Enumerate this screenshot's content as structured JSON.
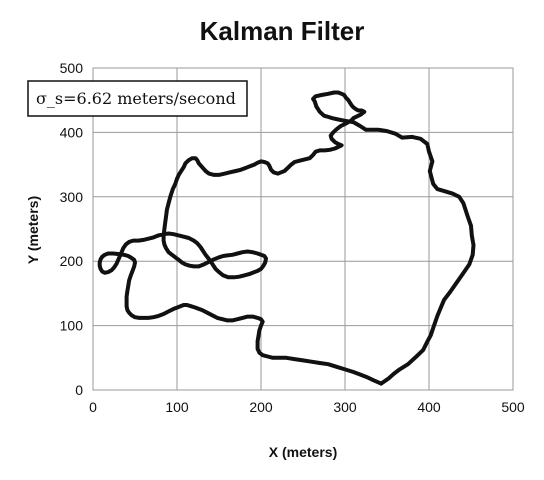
{
  "chart_data": {
    "type": "line",
    "title": "Kalman Filter",
    "xlabel": "X (meters)",
    "ylabel": "Y (meters)",
    "xlim": [
      0,
      500
    ],
    "ylim": [
      0,
      500
    ],
    "x_ticks": [
      "0",
      "100",
      "200",
      "300",
      "400",
      "500"
    ],
    "y_ticks": [
      "0",
      "100",
      "200",
      "300",
      "400",
      "500"
    ],
    "grid": true,
    "annotation": "σ_s=6.62 meters/second",
    "series": [
      {
        "color": "#111111",
        "points": [
          [
            343,
            10
          ],
          [
            352,
            18
          ],
          [
            358,
            25
          ],
          [
            365,
            32
          ],
          [
            375,
            40
          ],
          [
            385,
            52
          ],
          [
            393,
            62
          ],
          [
            398,
            75
          ],
          [
            402,
            85
          ],
          [
            406,
            100
          ],
          [
            410,
            115
          ],
          [
            414,
            128
          ],
          [
            418,
            140
          ],
          [
            425,
            152
          ],
          [
            432,
            165
          ],
          [
            440,
            180
          ],
          [
            448,
            195
          ],
          [
            452,
            210
          ],
          [
            453,
            225
          ],
          [
            451,
            240
          ],
          [
            450,
            255
          ],
          [
            446,
            270
          ],
          [
            441,
            290
          ],
          [
            436,
            300
          ],
          [
            428,
            305
          ],
          [
            420,
            308
          ],
          [
            410,
            312
          ],
          [
            405,
            320
          ],
          [
            403,
            330
          ],
          [
            401,
            340
          ],
          [
            404,
            355
          ],
          [
            400,
            370
          ],
          [
            398,
            382
          ],
          [
            390,
            390
          ],
          [
            380,
            393
          ],
          [
            368,
            392
          ],
          [
            360,
            398
          ],
          [
            350,
            402
          ],
          [
            340,
            404
          ],
          [
            330,
            404
          ],
          [
            325,
            404
          ],
          [
            318,
            410
          ],
          [
            310,
            416
          ],
          [
            300,
            418
          ],
          [
            292,
            420
          ],
          [
            285,
            422
          ],
          [
            280,
            424
          ],
          [
            275,
            426
          ],
          [
            270,
            432
          ],
          [
            266,
            440
          ],
          [
            264,
            448
          ],
          [
            262,
            452
          ],
          [
            265,
            456
          ],
          [
            272,
            458
          ],
          [
            280,
            460
          ],
          [
            287,
            462
          ],
          [
            292,
            462
          ],
          [
            296,
            460
          ],
          [
            299,
            458
          ],
          [
            301,
            454
          ],
          [
            304,
            450
          ],
          [
            306,
            446
          ],
          [
            308,
            442
          ],
          [
            310,
            439
          ],
          [
            313,
            436
          ],
          [
            316,
            434
          ],
          [
            320,
            434
          ],
          [
            323,
            432
          ],
          [
            321,
            430
          ],
          [
            319,
            428
          ],
          [
            316,
            426
          ],
          [
            313,
            424
          ],
          [
            310,
            422
          ],
          [
            307,
            418
          ],
          [
            304,
            416
          ],
          [
            300,
            413
          ],
          [
            295,
            410
          ],
          [
            290,
            405
          ],
          [
            286,
            400
          ],
          [
            283,
            395
          ],
          [
            284,
            390
          ],
          [
            288,
            385
          ],
          [
            292,
            382
          ],
          [
            296,
            380
          ],
          [
            293,
            378
          ],
          [
            288,
            375
          ],
          [
            282,
            373
          ],
          [
            276,
            372
          ],
          [
            270,
            372
          ],
          [
            265,
            370
          ],
          [
            262,
            365
          ],
          [
            258,
            360
          ],
          [
            252,
            358
          ],
          [
            246,
            356
          ],
          [
            240,
            354
          ],
          [
            236,
            350
          ],
          [
            232,
            345
          ],
          [
            228,
            340
          ],
          [
            224,
            338
          ],
          [
            220,
            336
          ],
          [
            215,
            338
          ],
          [
            212,
            342
          ],
          [
            210,
            348
          ],
          [
            208,
            352
          ],
          [
            204,
            354
          ],
          [
            200,
            355
          ],
          [
            196,
            353
          ],
          [
            192,
            350
          ],
          [
            188,
            348
          ],
          [
            184,
            346
          ],
          [
            180,
            344
          ],
          [
            176,
            342
          ],
          [
            170,
            340
          ],
          [
            163,
            338
          ],
          [
            157,
            336
          ],
          [
            150,
            334
          ],
          [
            144,
            334
          ],
          [
            138,
            336
          ],
          [
            134,
            340
          ],
          [
            130,
            346
          ],
          [
            126,
            352
          ],
          [
            124,
            357
          ],
          [
            122,
            360
          ],
          [
            118,
            360
          ],
          [
            114,
            357
          ],
          [
            110,
            352
          ],
          [
            108,
            346
          ],
          [
            105,
            340
          ],
          [
            102,
            334
          ],
          [
            100,
            328
          ],
          [
            98,
            320
          ],
          [
            95,
            312
          ],
          [
            92,
            300
          ],
          [
            90,
            290
          ],
          [
            88,
            280
          ],
          [
            87,
            270
          ],
          [
            86,
            260
          ],
          [
            85,
            250
          ],
          [
            84,
            240
          ],
          [
            84,
            232
          ],
          [
            85,
            226
          ],
          [
            87,
            220
          ],
          [
            90,
            214
          ],
          [
            94,
            210
          ],
          [
            98,
            206
          ],
          [
            102,
            202
          ],
          [
            106,
            198
          ],
          [
            110,
            195
          ],
          [
            115,
            193
          ],
          [
            120,
            192
          ],
          [
            126,
            192
          ],
          [
            132,
            195
          ],
          [
            138,
            199
          ],
          [
            144,
            203
          ],
          [
            150,
            206
          ],
          [
            155,
            208
          ],
          [
            160,
            209
          ],
          [
            166,
            210
          ],
          [
            172,
            212
          ],
          [
            178,
            214
          ],
          [
            184,
            215
          ],
          [
            190,
            214
          ],
          [
            196,
            212
          ],
          [
            200,
            210
          ],
          [
            204,
            208
          ],
          [
            206,
            204
          ],
          [
            205,
            198
          ],
          [
            203,
            193
          ],
          [
            200,
            188
          ],
          [
            196,
            185
          ],
          [
            192,
            183
          ],
          [
            186,
            180
          ],
          [
            180,
            178
          ],
          [
            174,
            176
          ],
          [
            168,
            175
          ],
          [
            161,
            175
          ],
          [
            155,
            178
          ],
          [
            150,
            183
          ],
          [
            146,
            188
          ],
          [
            143,
            194
          ],
          [
            140,
            200
          ],
          [
            137,
            205
          ],
          [
            134,
            210
          ],
          [
            131,
            216
          ],
          [
            128,
            222
          ],
          [
            124,
            228
          ],
          [
            120,
            232
          ],
          [
            114,
            236
          ],
          [
            108,
            238
          ],
          [
            102,
            240
          ],
          [
            96,
            242
          ],
          [
            90,
            243
          ],
          [
            84,
            242
          ],
          [
            78,
            240
          ],
          [
            72,
            237
          ],
          [
            66,
            235
          ],
          [
            60,
            233
          ],
          [
            54,
            232
          ],
          [
            48,
            232
          ],
          [
            43,
            230
          ],
          [
            39,
            226
          ],
          [
            36,
            220
          ],
          [
            34,
            214
          ],
          [
            32,
            208
          ],
          [
            30,
            202
          ],
          [
            28,
            196
          ],
          [
            25,
            190
          ],
          [
            22,
            186
          ],
          [
            18,
            183
          ],
          [
            14,
            182
          ],
          [
            11,
            184
          ],
          [
            9,
            188
          ],
          [
            8,
            193
          ],
          [
            8,
            198
          ],
          [
            9,
            203
          ],
          [
            11,
            207
          ],
          [
            14,
            210
          ],
          [
            18,
            212
          ],
          [
            24,
            212
          ],
          [
            31,
            211
          ],
          [
            37,
            210
          ],
          [
            42,
            208
          ],
          [
            46,
            205
          ],
          [
            49,
            202
          ],
          [
            50,
            198
          ],
          [
            49,
            192
          ],
          [
            47,
            185
          ],
          [
            45,
            178
          ],
          [
            43,
            170
          ],
          [
            42,
            162
          ],
          [
            41,
            154
          ],
          [
            40,
            145
          ],
          [
            40,
            138
          ],
          [
            40,
            130
          ],
          [
            41,
            124
          ],
          [
            43,
            120
          ],
          [
            46,
            116
          ],
          [
            50,
            113
          ],
          [
            55,
            112
          ],
          [
            60,
            112
          ],
          [
            66,
            112
          ],
          [
            72,
            113
          ],
          [
            78,
            115
          ],
          [
            84,
            118
          ],
          [
            90,
            122
          ],
          [
            96,
            126
          ],
          [
            100,
            128
          ],
          [
            104,
            130
          ],
          [
            108,
            132
          ],
          [
            112,
            132
          ],
          [
            117,
            130
          ],
          [
            122,
            128
          ],
          [
            126,
            126
          ],
          [
            130,
            124
          ],
          [
            136,
            120
          ],
          [
            142,
            116
          ],
          [
            148,
            112
          ],
          [
            154,
            110
          ],
          [
            160,
            108
          ],
          [
            166,
            108
          ],
          [
            172,
            110
          ],
          [
            178,
            112
          ],
          [
            184,
            114
          ],
          [
            190,
            114
          ],
          [
            196,
            112
          ],
          [
            200,
            110
          ],
          [
            202,
            106
          ],
          [
            200,
            100
          ],
          [
            198,
            92
          ],
          [
            197,
            84
          ],
          [
            196,
            76
          ],
          [
            196,
            70
          ],
          [
            196,
            64
          ],
          [
            198,
            58
          ],
          [
            202,
            54
          ],
          [
            208,
            52
          ],
          [
            214,
            50
          ],
          [
            222,
            50
          ],
          [
            230,
            50
          ],
          [
            240,
            48
          ],
          [
            250,
            46
          ],
          [
            260,
            44
          ],
          [
            270,
            42
          ],
          [
            280,
            40
          ],
          [
            290,
            36
          ],
          [
            300,
            32
          ],
          [
            310,
            28
          ],
          [
            318,
            24
          ],
          [
            326,
            20
          ],
          [
            334,
            15
          ],
          [
            343,
            10
          ]
        ]
      }
    ]
  }
}
